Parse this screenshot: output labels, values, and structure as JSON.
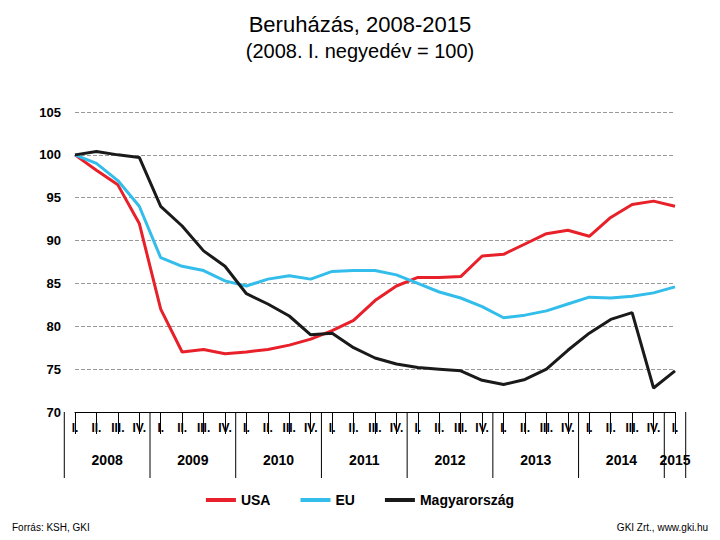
{
  "chart_data": {
    "type": "line",
    "title": "Beruházás, 2008-2015",
    "subtitle": "(2008. I. negyedév = 100)",
    "source": "Forrás: KSH, GKI",
    "credit": "GKI Zrt., www.gki.hu",
    "categories": [
      "I.",
      "II.",
      "III.",
      "IV.",
      "I.",
      "II.",
      "III.",
      "IV.",
      "I.",
      "II.",
      "III.",
      "IV.",
      "I.",
      "II.",
      "III.",
      "IV.",
      "I.",
      "II.",
      "III.",
      "IV.",
      "I.",
      "II.",
      "III.",
      "IV.",
      "I.",
      "II.",
      "III.",
      "IV.",
      "I."
    ],
    "years": [
      "2008",
      "2008",
      "2008",
      "2008",
      "2009",
      "2009",
      "2009",
      "2009",
      "2010",
      "2010",
      "2010",
      "2010",
      "2011",
      "2011",
      "2011",
      "2011",
      "2012",
      "2012",
      "2012",
      "2012",
      "2013",
      "2013",
      "2013",
      "2013",
      "2014",
      "2014",
      "2014",
      "2014",
      "2015"
    ],
    "series": [
      {
        "name": "USA",
        "color": "#e8202a",
        "values": [
          100,
          98.2,
          96.5,
          92,
          82,
          77,
          77.3,
          76.8,
          77,
          77.3,
          77.8,
          78.5,
          79.5,
          80.7,
          83,
          84.7,
          85.7,
          85.7,
          85.8,
          88.2,
          88.4,
          89.6,
          90.8,
          91.2,
          90.5,
          92.7,
          94.2,
          94.6,
          94
        ]
      },
      {
        "name": "EU",
        "color": "#33bdea",
        "values": [
          100,
          99,
          97,
          94,
          88,
          87,
          86.5,
          85.3,
          84.7,
          85.5,
          85.9,
          85.5,
          86.4,
          86.5,
          86.5,
          86,
          85,
          84,
          83.3,
          82.3,
          81,
          81.3,
          81.8,
          82.6,
          83.4,
          83.3,
          83.5,
          83.9,
          84.6
        ]
      },
      {
        "name": "Magyarország",
        "color": "#1a1a1a",
        "values": [
          100,
          100.4,
          100,
          99.7,
          94,
          91.7,
          88.8,
          87,
          83.8,
          82.6,
          81.2,
          79,
          79.2,
          77.5,
          76.3,
          75.6,
          75.2,
          75,
          74.8,
          73.7,
          73.2,
          73.8,
          75,
          77.2,
          79.2,
          80.8,
          81.6,
          72.8,
          74.8
        ]
      }
    ],
    "ylim": [
      70,
      105
    ],
    "yticks": [
      70,
      75,
      80,
      85,
      90,
      95,
      100,
      105
    ],
    "grid": true,
    "legend": "bottom"
  }
}
